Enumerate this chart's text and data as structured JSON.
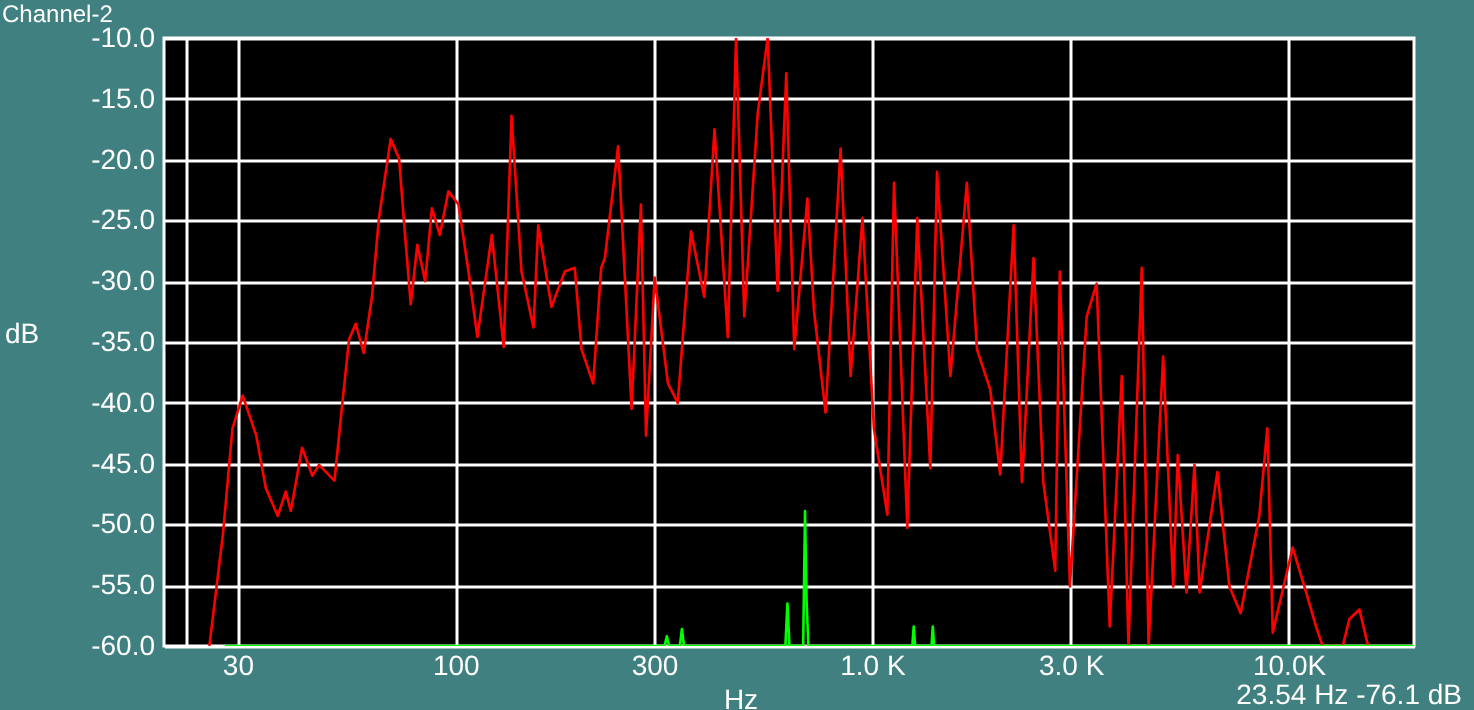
{
  "chart_data": {
    "type": "line",
    "title": "Channel-2",
    "xlabel": "Hz",
    "ylabel": "dB",
    "annotations": [
      "23.54 Hz -76.1 dB"
    ],
    "log": "x",
    "grid": true,
    "marker": "none",
    "line_style": "solid",
    "xlim": [
      20,
      20000
    ],
    "xticks": [
      {
        "value": 22.7,
        "label": null
      },
      30,
      100,
      300,
      {
        "value": 1000,
        "label": "1.0 K"
      },
      {
        "value": 3000,
        "label": "3.0 K"
      },
      {
        "value": 10000,
        "label": "10.0K"
      }
    ],
    "ylim": [
      -60,
      -10
    ],
    "yticks": [
      {
        "value": -10,
        "label": "-10.0"
      },
      {
        "value": -15,
        "label": "-15.0"
      },
      {
        "value": -20,
        "label": "-20.0"
      },
      {
        "value": -25,
        "label": "-25.0"
      },
      {
        "value": -30,
        "label": "-30.0"
      },
      {
        "value": -35,
        "label": "-35.0"
      },
      {
        "value": -40,
        "label": "-40.0"
      },
      {
        "value": -45,
        "label": "-45.0"
      },
      {
        "value": -50,
        "label": "-50.0"
      },
      {
        "value": -55,
        "label": "-55.0"
      },
      {
        "value": -60,
        "label": "-60.0"
      }
    ],
    "series": [
      {
        "color": "#ff0000",
        "x": [
          25.7,
          27.7,
          29.2,
          30.9,
          33.3,
          35.1,
          37.5,
          39.2,
          40.3,
          42.9,
          45.4,
          47.1,
          51.3,
          53.6,
          55.6,
          57.7,
          60.3,
          63.1,
          65.6,
          70,
          73.3,
          75.9,
          78.2,
          81.1,
          84.7,
          87.9,
          91.8,
          96.3,
          101.8,
          107.6,
          113,
          122.4,
          130.7,
          136.5,
          144.2,
          154.1,
          158.2,
          170.2,
          183.2,
          193.6,
          200.9,
          214.3,
          224,
          228.6,
          246,
          265,
          279,
          287,
          301,
          324,
          342,
          368,
          396,
          419,
          451,
          472,
          494,
          532,
          562,
          594,
          623,
          651,
          700,
          726,
          774,
          841,
          889,
          949,
          1011,
          1089,
          1130,
          1216,
          1285,
          1381,
          1433,
          1543,
          1690,
          1787,
          1923,
          2032,
          2188,
          2291,
          2312,
          2443,
          2578,
          2754,
          2825,
          2987,
          3277,
          3462,
          3722,
          3978,
          4128,
          4443,
          4613,
          5000,
          5286,
          5421,
          5689,
          5945,
          6115,
          6747,
          7211,
          7674,
          8505,
          8892,
          9164,
          10230,
          11020,
          11640,
          12070,
          13490,
          13990,
          14790,
          15520
        ],
        "values": [
          -60,
          -50.8,
          -42.1,
          -39.4,
          -42.7,
          -47,
          -49.3,
          -47.3,
          -48.9,
          -43.7,
          -46,
          -45.1,
          -46.4,
          -40,
          -34.8,
          -33.5,
          -35.9,
          -31.3,
          -24.8,
          -18.3,
          -19.9,
          -26.5,
          -31.9,
          -27,
          -30,
          -24,
          -26.2,
          -22.6,
          -23.7,
          -29.2,
          -34.6,
          -26.2,
          -35.4,
          -16.4,
          -29.2,
          -33.8,
          -25.4,
          -32.1,
          -29.2,
          -28.9,
          -35.6,
          -38.4,
          -28.9,
          -28.1,
          -18.9,
          -40.5,
          -23.7,
          -42.7,
          -29.7,
          -38.4,
          -40,
          -25.9,
          -31.3,
          -17.5,
          -34.6,
          -10,
          -32.9,
          -16.2,
          -10,
          -30.8,
          -12.9,
          -35.6,
          -23.2,
          -32.4,
          -40.8,
          -19.1,
          -37.8,
          -24.8,
          -42.1,
          -49.2,
          -21.9,
          -50.3,
          -24.8,
          -45.4,
          -21,
          -37.8,
          -21.9,
          -35.6,
          -38.9,
          -45.9,
          -25.4,
          -46.5,
          -44.3,
          -28.1,
          -46.5,
          -53.8,
          -29.2,
          -55.1,
          -32.9,
          -30.2,
          -58.4,
          -37.8,
          -60,
          -28.9,
          -60,
          -36.2,
          -55.1,
          -44.3,
          -55.6,
          -45.1,
          -55.6,
          -45.7,
          -55.1,
          -57.3,
          -49.3,
          -42.1,
          -58.9,
          -51.9,
          -55.6,
          -58.4,
          -60,
          -60,
          -57.8,
          -57,
          -60
        ]
      },
      {
        "color": "#00ff00",
        "x": [
          28,
          318,
          322,
          326,
          346,
          350,
          354,
          620,
          627,
          634,
          684,
          691,
          697,
          704,
          1250,
          1260,
          1270,
          1390,
          1400,
          1410,
          20000
        ],
        "values": [
          -60,
          -60,
          -59.2,
          -60,
          -60,
          -58.6,
          -60,
          -60,
          -56.5,
          -60,
          -60,
          -48.9,
          -56.3,
          -60,
          -60,
          -58.4,
          -60,
          -60,
          -58.4,
          -60,
          -60
        ]
      }
    ]
  }
}
